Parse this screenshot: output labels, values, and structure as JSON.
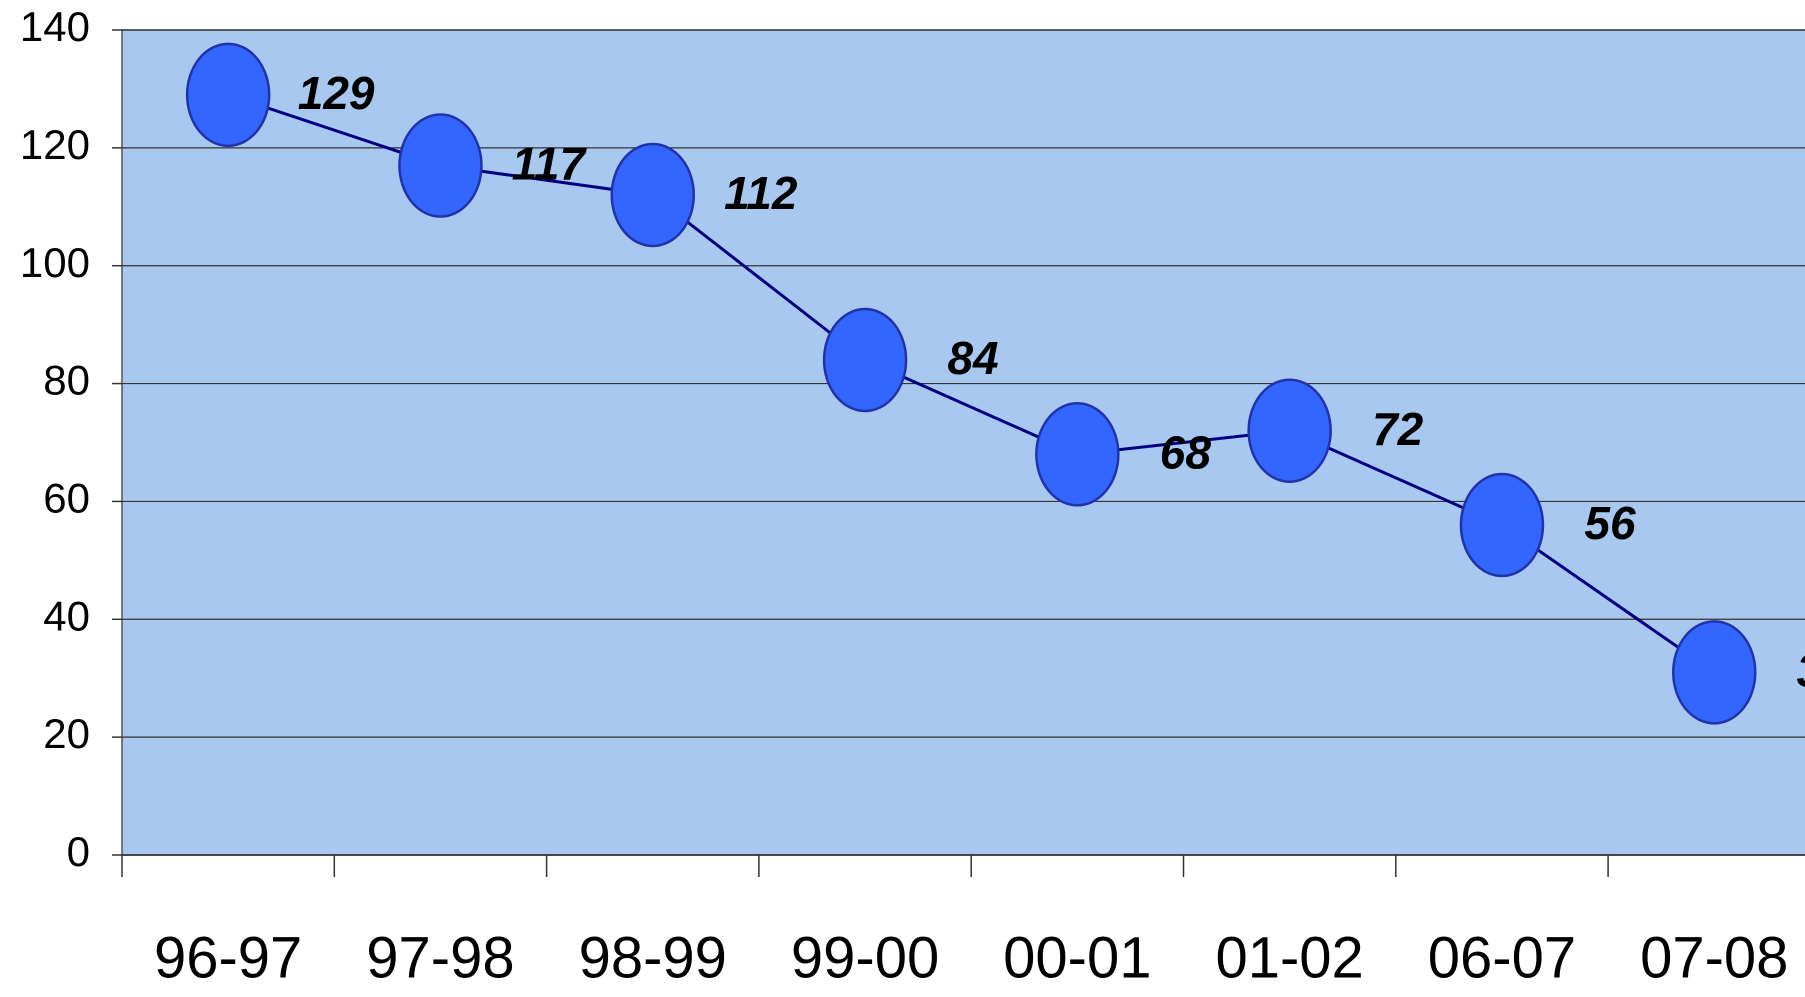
{
  "chart_data": {
    "type": "line",
    "categories": [
      "96-97",
      "97-98",
      "98-99",
      "99-00",
      "00-01",
      "01-02",
      "06-07",
      "07-08"
    ],
    "series": [
      {
        "name": null,
        "color": "#000080",
        "marker_color": "#3366ff",
        "values": [
          129,
          117,
          112,
          84,
          68,
          72,
          56,
          31
        ]
      }
    ],
    "ylim": [
      0,
      140
    ],
    "yticks": [
      0,
      20,
      40,
      60,
      80,
      100,
      120,
      140
    ],
    "grid": true,
    "background": "#a8c8f0"
  }
}
